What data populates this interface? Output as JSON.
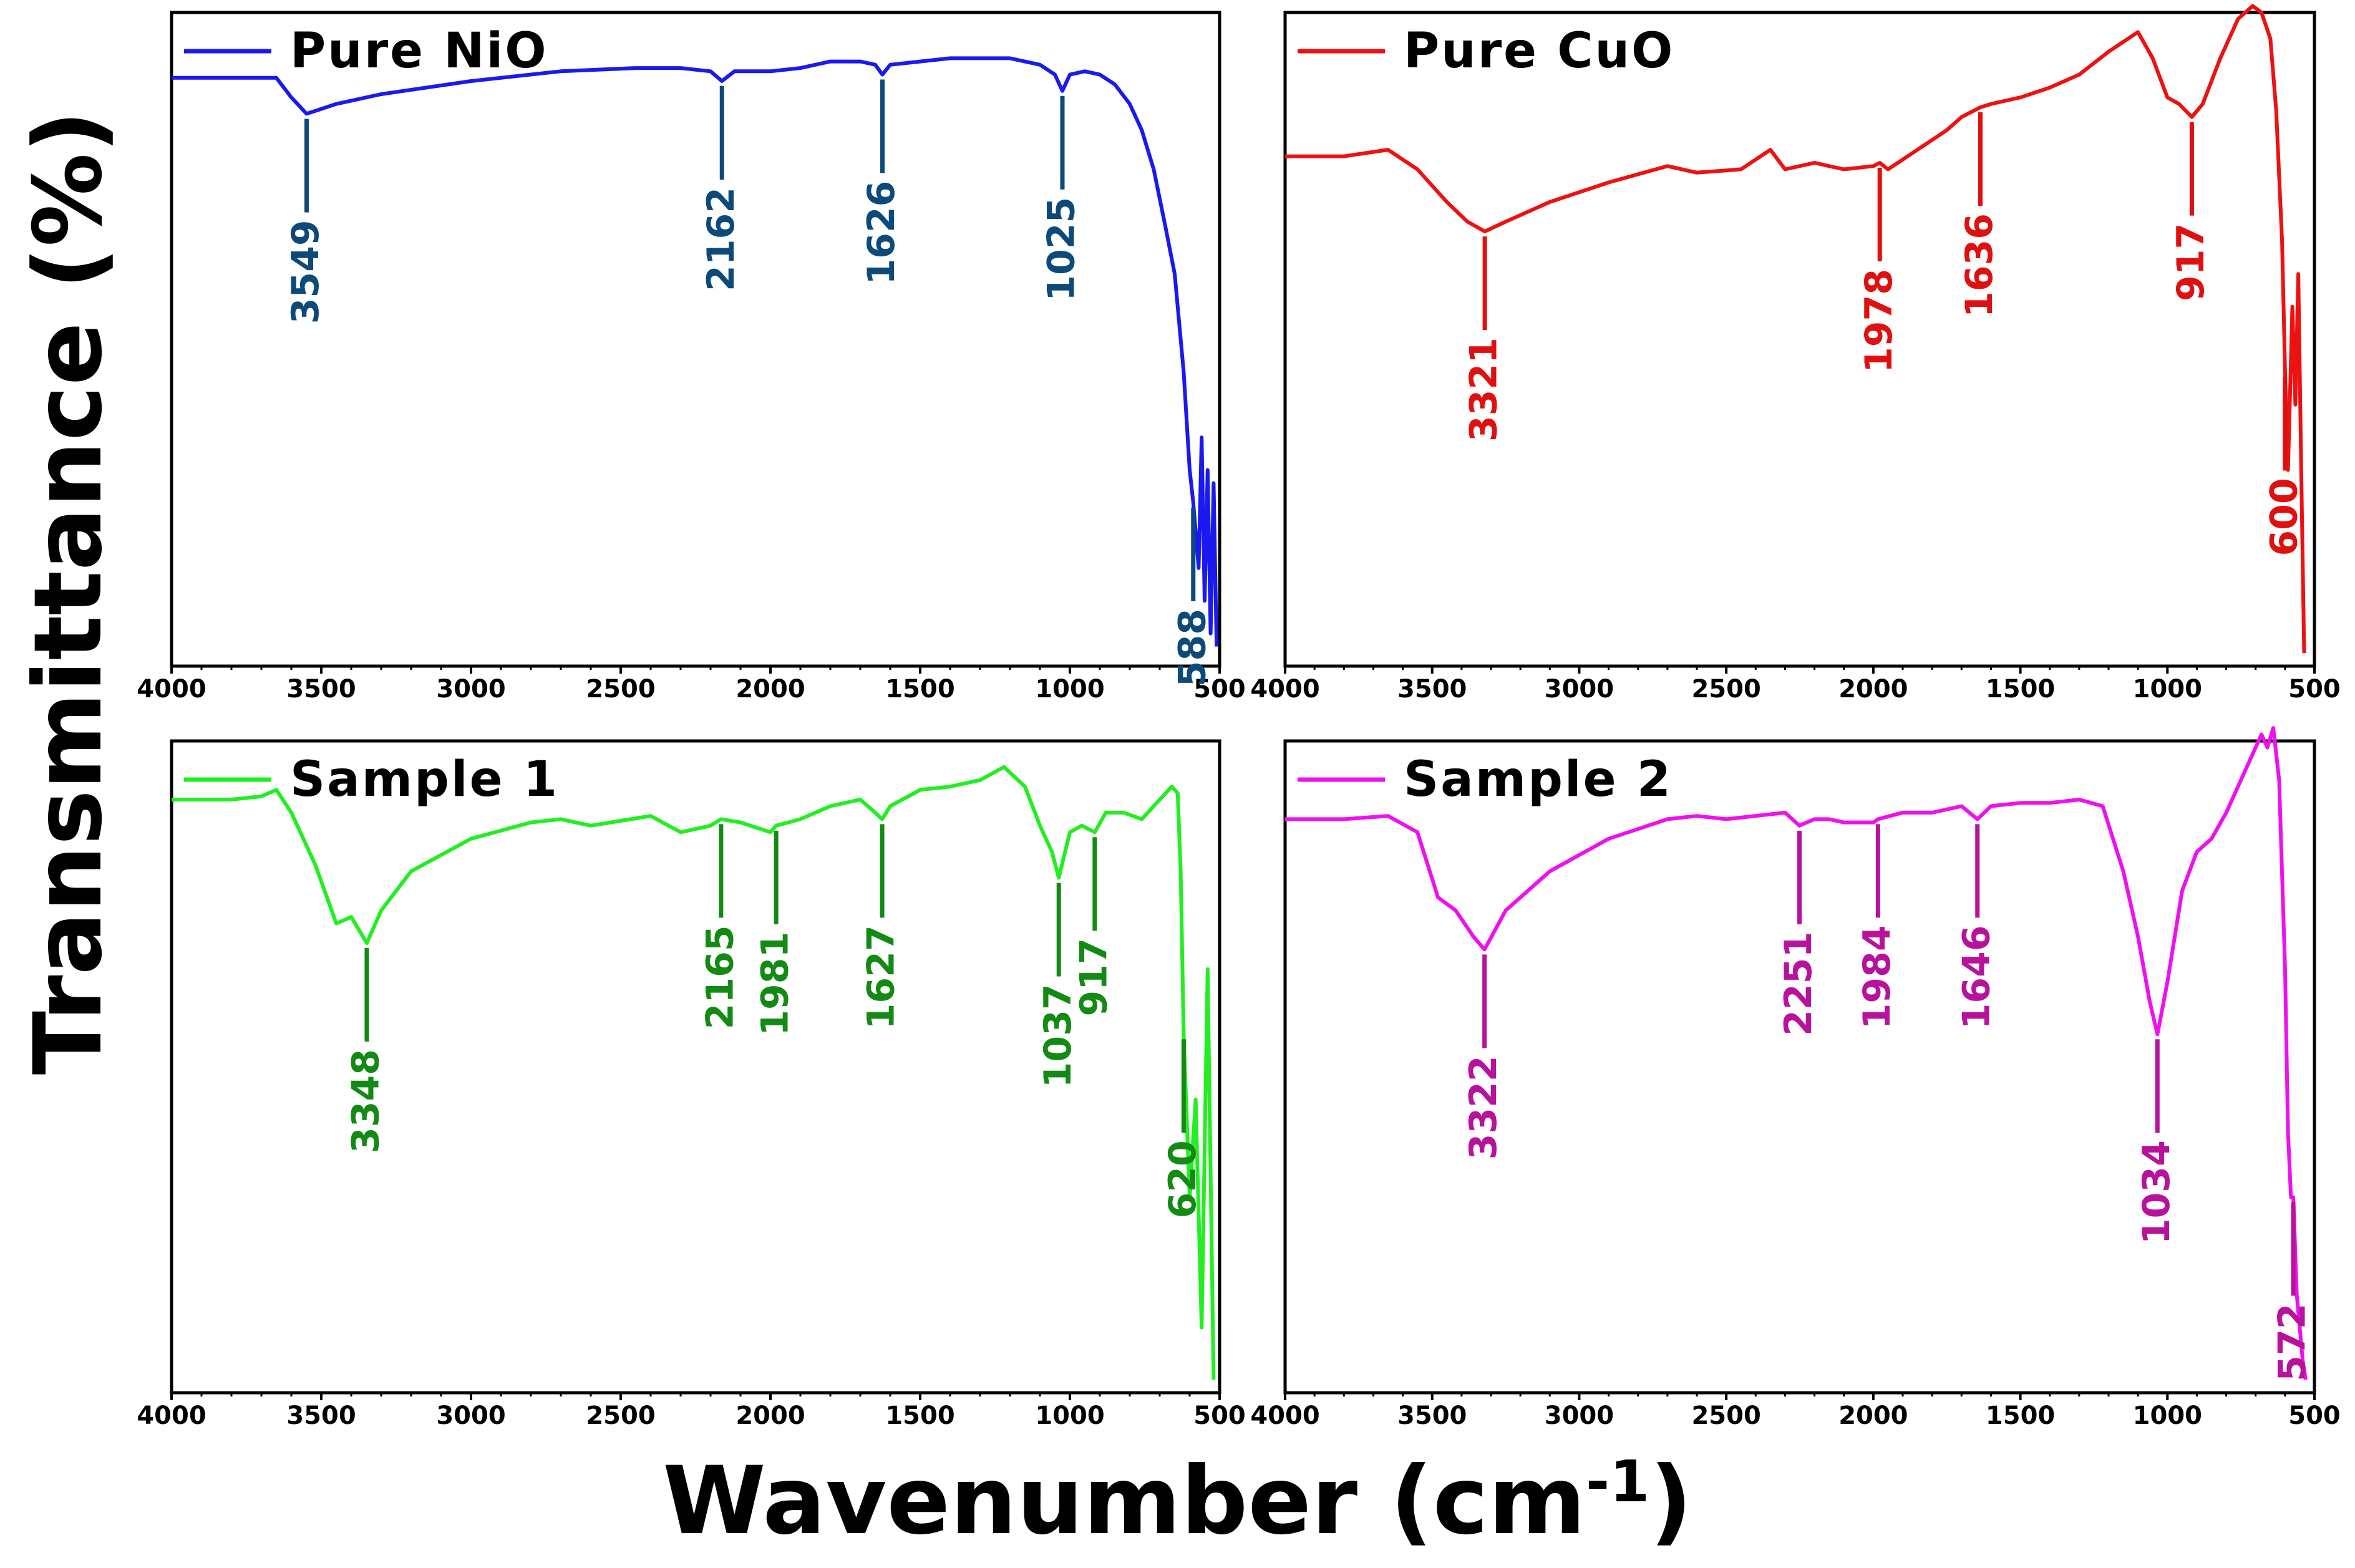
{
  "figure": {
    "y_axis_label": "Transmittance (%)",
    "x_axis_label_main": "Wavenumber (cm",
    "x_axis_label_sup": "-1",
    "x_axis_label_end": ")"
  },
  "chart_data": [
    {
      "type": "line",
      "title": "",
      "legend": "Pure NiO",
      "legend_position": "top-left",
      "color": "#1a1aee",
      "label_color": "#0d4a7a",
      "xlabel": "Wavenumber (cm-1)",
      "ylabel": "Transmittance (%)",
      "xlim": [
        4000,
        500
      ],
      "ylim": [
        0,
        100
      ],
      "xticks": [
        4000,
        3500,
        3000,
        2500,
        2000,
        1500,
        1000,
        500
      ],
      "grid": false,
      "series": [
        {
          "name": "Pure NiO",
          "x": [
            4000,
            3750,
            3650,
            3600,
            3549,
            3450,
            3300,
            3000,
            2700,
            2450,
            2300,
            2200,
            2162,
            2120,
            2000,
            1900,
            1800,
            1700,
            1650,
            1626,
            1600,
            1500,
            1400,
            1300,
            1200,
            1100,
            1050,
            1025,
            1000,
            950,
            900,
            850,
            800,
            760,
            720,
            680,
            650,
            620,
            600,
            588,
            570,
            560,
            550,
            540,
            530,
            520,
            510
          ],
          "values": [
            90,
            90,
            90,
            87,
            84.5,
            86,
            87.5,
            89.5,
            91,
            91.5,
            91.5,
            91,
            89.5,
            91,
            91,
            91.5,
            92.5,
            92.5,
            92,
            90.5,
            92,
            92.5,
            93,
            93,
            93,
            92,
            90.5,
            88,
            90.5,
            91,
            90.5,
            89,
            86,
            82,
            76,
            67,
            60,
            45,
            30,
            25,
            15,
            35,
            10,
            30,
            5,
            28,
            3
          ]
        }
      ],
      "annotations": [
        {
          "x": 3549,
          "label": "3549"
        },
        {
          "x": 2162,
          "label": "2162"
        },
        {
          "x": 1626,
          "label": "1626"
        },
        {
          "x": 1025,
          "label": "1025"
        },
        {
          "x": 588,
          "label": "588"
        }
      ]
    },
    {
      "type": "line",
      "title": "",
      "legend": "Pure CuO",
      "legend_position": "top-left",
      "color": "#ee1111",
      "label_color": "#e01010",
      "xlabel": "Wavenumber (cm-1)",
      "ylabel": "Transmittance (%)",
      "xlim": [
        4000,
        500
      ],
      "ylim": [
        0,
        100
      ],
      "xticks": [
        4000,
        3500,
        3000,
        2500,
        2000,
        1500,
        1000,
        500
      ],
      "grid": false,
      "series": [
        {
          "name": "Pure CuO",
          "x": [
            4000,
            3800,
            3650,
            3550,
            3450,
            3380,
            3321,
            3250,
            3100,
            2900,
            2700,
            2600,
            2450,
            2350,
            2300,
            2200,
            2100,
            2000,
            1978,
            1950,
            1850,
            1750,
            1700,
            1636,
            1600,
            1500,
            1400,
            1300,
            1200,
            1100,
            1050,
            1000,
            960,
            917,
            880,
            820,
            760,
            710,
            680,
            650,
            630,
            610,
            600,
            590,
            575,
            565,
            555,
            545,
            535
          ],
          "values": [
            78,
            78,
            79,
            76,
            71,
            68,
            66.5,
            68,
            71,
            74,
            76.5,
            75.5,
            76,
            79,
            76,
            77,
            76,
            76.5,
            77,
            76,
            79,
            82,
            84,
            85.5,
            86,
            87,
            88.5,
            90.5,
            94,
            97,
            93,
            87,
            86,
            84,
            86,
            93,
            99,
            101,
            100,
            96,
            85,
            65,
            45,
            30,
            55,
            40,
            60,
            30,
            2
          ]
        }
      ],
      "annotations": [
        {
          "x": 3321,
          "label": "3321"
        },
        {
          "x": 1978,
          "label": "1978"
        },
        {
          "x": 1636,
          "label": "1636"
        },
        {
          "x": 917,
          "label": "917"
        },
        {
          "x": 600,
          "label": "600"
        }
      ]
    },
    {
      "type": "line",
      "title": "",
      "legend": "Sample 1",
      "legend_position": "top-left",
      "color": "#22ee22",
      "label_color": "#138a13",
      "xlabel": "Wavenumber (cm-1)",
      "ylabel": "Transmittance (%)",
      "xlim": [
        4000,
        500
      ],
      "ylim": [
        0,
        100
      ],
      "xticks": [
        4000,
        3500,
        3000,
        2500,
        2000,
        1500,
        1000,
        500
      ],
      "grid": false,
      "series": [
        {
          "name": "Sample 1",
          "x": [
            4000,
            3800,
            3700,
            3650,
            3600,
            3520,
            3450,
            3400,
            3348,
            3300,
            3200,
            3000,
            2800,
            2700,
            2600,
            2400,
            2300,
            2200,
            2165,
            2100,
            2000,
            1981,
            1900,
            1800,
            1700,
            1650,
            1627,
            1600,
            1500,
            1400,
            1300,
            1220,
            1150,
            1100,
            1060,
            1037,
            1000,
            960,
            917,
            880,
            820,
            760,
            700,
            660,
            640,
            630,
            620,
            600,
            580,
            560,
            540,
            520
          ],
          "values": [
            91,
            91,
            91.5,
            92.5,
            89,
            81,
            72,
            73,
            69,
            74,
            80,
            85,
            87.5,
            88,
            87,
            88.5,
            86,
            87,
            88,
            87.5,
            86,
            87,
            88,
            90,
            91,
            89,
            88,
            90,
            92.5,
            93,
            94,
            96,
            93,
            87,
            83,
            79,
            86,
            87,
            86,
            89,
            89,
            88,
            91,
            93,
            92,
            80,
            55,
            30,
            45,
            10,
            65,
            2
          ]
        }
      ],
      "annotations": [
        {
          "x": 3348,
          "label": "3348"
        },
        {
          "x": 2165,
          "label": "2165"
        },
        {
          "x": 1981,
          "label": "1981"
        },
        {
          "x": 1627,
          "label": "1627"
        },
        {
          "x": 1037,
          "label": "1037"
        },
        {
          "x": 917,
          "label": "917"
        },
        {
          "x": 620,
          "label": "620"
        }
      ]
    },
    {
      "type": "line",
      "title": "",
      "legend": "Sample 2",
      "legend_position": "top-left",
      "color": "#ee11ee",
      "label_color": "#b8129c",
      "xlabel": "Wavenumber (cm-1)",
      "ylabel": "Transmittance (%)",
      "xlim": [
        4000,
        500
      ],
      "ylim": [
        0,
        100
      ],
      "xticks": [
        4000,
        3500,
        3000,
        2500,
        2000,
        1500,
        1000,
        500
      ],
      "grid": false,
      "series": [
        {
          "name": "Sample 2",
          "x": [
            4000,
            3800,
            3650,
            3550,
            3480,
            3420,
            3360,
            3322,
            3250,
            3100,
            2900,
            2700,
            2600,
            2500,
            2400,
            2300,
            2251,
            2200,
            2150,
            2100,
            2000,
            1984,
            1900,
            1800,
            1700,
            1646,
            1600,
            1500,
            1400,
            1300,
            1220,
            1150,
            1100,
            1060,
            1034,
            1000,
            950,
            900,
            850,
            800,
            760,
            720,
            680,
            660,
            640,
            620,
            600,
            590,
            580,
            572,
            560,
            550,
            540,
            530
          ],
          "values": [
            88,
            88,
            88.5,
            86,
            76,
            74,
            70,
            68,
            74,
            80,
            85,
            88,
            88.5,
            88,
            88.5,
            89,
            87,
            88,
            88,
            87.5,
            87.5,
            88,
            89,
            89,
            90,
            88,
            90,
            90.5,
            90.5,
            91,
            90,
            80,
            70,
            60,
            55,
            63,
            77,
            83,
            85,
            89,
            93,
            97,
            101,
            99,
            102,
            94,
            65,
            40,
            30,
            30,
            15,
            10,
            5,
            2
          ]
        }
      ],
      "annotations": [
        {
          "x": 3322,
          "label": "3322"
        },
        {
          "x": 2251,
          "label": "2251"
        },
        {
          "x": 1984,
          "label": "1984"
        },
        {
          "x": 1646,
          "label": "1646"
        },
        {
          "x": 1034,
          "label": "1034"
        },
        {
          "x": 572,
          "label": "572"
        }
      ]
    }
  ]
}
